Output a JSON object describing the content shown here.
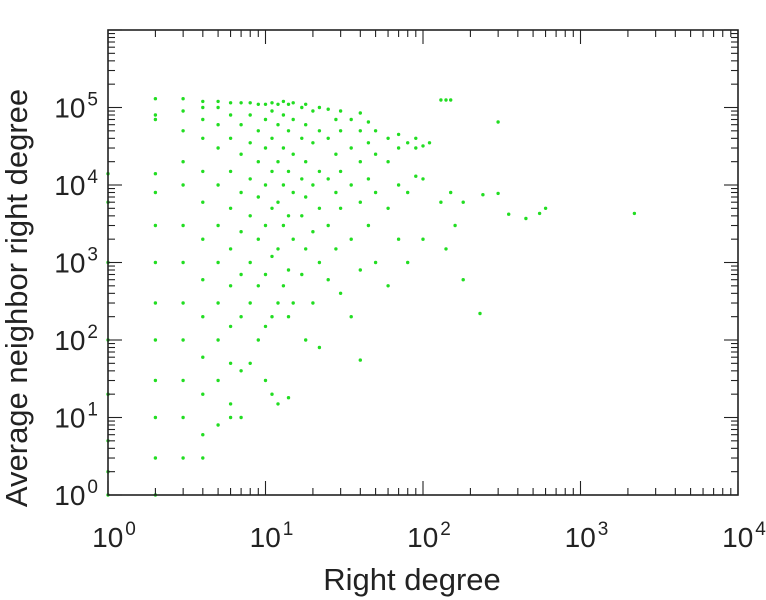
{
  "chart_data": {
    "type": "scatter",
    "title": "",
    "xlabel": "Right degree",
    "ylabel": "Average neighbor right degree",
    "x_scale": "log",
    "y_scale": "log",
    "xlim": [
      1,
      10000
    ],
    "ylim": [
      1,
      1000000
    ],
    "grid": false,
    "legend": "none",
    "x_ticks": [
      {
        "base": "10",
        "exp": "0"
      },
      {
        "base": "10",
        "exp": "1"
      },
      {
        "base": "10",
        "exp": "2"
      },
      {
        "base": "10",
        "exp": "3"
      },
      {
        "base": "10",
        "exp": "4"
      }
    ],
    "y_ticks": [
      {
        "base": "10",
        "exp": "0"
      },
      {
        "base": "10",
        "exp": "1"
      },
      {
        "base": "10",
        "exp": "2"
      },
      {
        "base": "10",
        "exp": "3"
      },
      {
        "base": "10",
        "exp": "4"
      },
      {
        "base": "10",
        "exp": "5"
      }
    ],
    "marker_color": "#22dd22",
    "series": [
      {
        "points": [
          [
            1,
            1
          ],
          [
            1,
            2
          ],
          [
            1,
            5
          ],
          [
            1,
            20
          ],
          [
            1,
            100
          ],
          [
            1,
            1000
          ],
          [
            1,
            6000
          ],
          [
            1,
            14000
          ],
          [
            2,
            1
          ],
          [
            2,
            3
          ],
          [
            2,
            10
          ],
          [
            2,
            30
          ],
          [
            2,
            100
          ],
          [
            2,
            300
          ],
          [
            2,
            1000
          ],
          [
            2,
            3000
          ],
          [
            2,
            8000
          ],
          [
            2,
            14000
          ],
          [
            2,
            70000
          ],
          [
            2,
            80000
          ],
          [
            2,
            130000
          ],
          [
            3,
            3
          ],
          [
            3,
            10
          ],
          [
            3,
            30
          ],
          [
            3,
            100
          ],
          [
            3,
            300
          ],
          [
            3,
            1000
          ],
          [
            3,
            3000
          ],
          [
            3,
            10000
          ],
          [
            3,
            20000
          ],
          [
            3,
            50000
          ],
          [
            3,
            90000
          ],
          [
            3,
            130000
          ],
          [
            4,
            3
          ],
          [
            4,
            6
          ],
          [
            4,
            20
          ],
          [
            4,
            60
          ],
          [
            4,
            200
          ],
          [
            4,
            600
          ],
          [
            4,
            2000
          ],
          [
            4,
            6000
          ],
          [
            4,
            15000
          ],
          [
            4,
            40000
          ],
          [
            4,
            70000
          ],
          [
            4,
            100000
          ],
          [
            4,
            120000
          ],
          [
            5,
            8
          ],
          [
            5,
            30
          ],
          [
            5,
            100
          ],
          [
            5,
            300
          ],
          [
            5,
            1000
          ],
          [
            5,
            3000
          ],
          [
            5,
            10000
          ],
          [
            5,
            30000
          ],
          [
            5,
            60000
          ],
          [
            5,
            100000
          ],
          [
            5,
            120000
          ],
          [
            6,
            10
          ],
          [
            6,
            15
          ],
          [
            6,
            50
          ],
          [
            6,
            150
          ],
          [
            6,
            500
          ],
          [
            6,
            1500
          ],
          [
            6,
            5000
          ],
          [
            6,
            15000
          ],
          [
            6,
            40000
          ],
          [
            6,
            80000
          ],
          [
            6,
            115000
          ],
          [
            7,
            10
          ],
          [
            7,
            40
          ],
          [
            7,
            200
          ],
          [
            7,
            700
          ],
          [
            7,
            2500
          ],
          [
            7,
            8000
          ],
          [
            7,
            25000
          ],
          [
            7,
            60000
          ],
          [
            7,
            115000
          ],
          [
            8,
            50
          ],
          [
            8,
            300
          ],
          [
            8,
            1000
          ],
          [
            8,
            4000
          ],
          [
            8,
            12000
          ],
          [
            8,
            35000
          ],
          [
            8,
            80000
          ],
          [
            8,
            115000
          ],
          [
            9,
            100
          ],
          [
            9,
            500
          ],
          [
            9,
            2000
          ],
          [
            9,
            7000
          ],
          [
            9,
            20000
          ],
          [
            9,
            50000
          ],
          [
            9,
            110000
          ],
          [
            10,
            30
          ],
          [
            10,
            150
          ],
          [
            10,
            700
          ],
          [
            10,
            3000
          ],
          [
            10,
            10000
          ],
          [
            10,
            30000
          ],
          [
            10,
            70000
          ],
          [
            10,
            110000
          ],
          [
            11,
            20
          ],
          [
            11,
            200
          ],
          [
            11,
            1200
          ],
          [
            11,
            5000
          ],
          [
            11,
            15000
          ],
          [
            11,
            40000
          ],
          [
            11,
            90000
          ],
          [
            11,
            115000
          ],
          [
            12,
            15
          ],
          [
            12,
            300
          ],
          [
            12,
            1500
          ],
          [
            12,
            6000
          ],
          [
            12,
            20000
          ],
          [
            12,
            60000
          ],
          [
            12,
            110000
          ],
          [
            13,
            500
          ],
          [
            13,
            3000
          ],
          [
            13,
            10000
          ],
          [
            13,
            30000
          ],
          [
            13,
            80000
          ],
          [
            13,
            120000
          ],
          [
            14,
            18
          ],
          [
            14,
            200
          ],
          [
            14,
            800
          ],
          [
            14,
            4000
          ],
          [
            14,
            15000
          ],
          [
            14,
            50000
          ],
          [
            14,
            110000
          ],
          [
            15,
            300
          ],
          [
            15,
            2000
          ],
          [
            15,
            8000
          ],
          [
            15,
            25000
          ],
          [
            15,
            70000
          ],
          [
            15,
            115000
          ],
          [
            17,
            700
          ],
          [
            17,
            4000
          ],
          [
            17,
            12000
          ],
          [
            17,
            40000
          ],
          [
            17,
            100000
          ],
          [
            18,
            100
          ],
          [
            18,
            1500
          ],
          [
            18,
            7000
          ],
          [
            18,
            20000
          ],
          [
            18,
            60000
          ],
          [
            18,
            110000
          ],
          [
            20,
            300
          ],
          [
            20,
            2500
          ],
          [
            20,
            10000
          ],
          [
            20,
            35000
          ],
          [
            20,
            90000
          ],
          [
            22,
            80
          ],
          [
            22,
            1000
          ],
          [
            22,
            5000
          ],
          [
            22,
            15000
          ],
          [
            22,
            50000
          ],
          [
            22,
            100000
          ],
          [
            25,
            600
          ],
          [
            25,
            3000
          ],
          [
            25,
            12000
          ],
          [
            25,
            40000
          ],
          [
            25,
            95000
          ],
          [
            28,
            1500
          ],
          [
            28,
            8000
          ],
          [
            28,
            25000
          ],
          [
            28,
            70000
          ],
          [
            30,
            400
          ],
          [
            30,
            5000
          ],
          [
            30,
            15000
          ],
          [
            30,
            50000
          ],
          [
            30,
            90000
          ],
          [
            35,
            200
          ],
          [
            35,
            2000
          ],
          [
            35,
            10000
          ],
          [
            35,
            30000
          ],
          [
            35,
            70000
          ],
          [
            40,
            55
          ],
          [
            40,
            800
          ],
          [
            40,
            6000
          ],
          [
            40,
            20000
          ],
          [
            40,
            50000
          ],
          [
            40,
            85000
          ],
          [
            45,
            3000
          ],
          [
            45,
            12000
          ],
          [
            45,
            35000
          ],
          [
            45,
            65000
          ],
          [
            50,
            1000
          ],
          [
            50,
            8000
          ],
          [
            50,
            25000
          ],
          [
            50,
            50000
          ],
          [
            60,
            500
          ],
          [
            60,
            5000
          ],
          [
            60,
            20000
          ],
          [
            60,
            40000
          ],
          [
            70,
            2000
          ],
          [
            70,
            10000
          ],
          [
            70,
            30000
          ],
          [
            70,
            45000
          ],
          [
            80,
            1000
          ],
          [
            80,
            8000
          ],
          [
            80,
            35000
          ],
          [
            90,
            13000
          ],
          [
            90,
            30000
          ],
          [
            90,
            40000
          ],
          [
            100,
            2000
          ],
          [
            100,
            12000
          ],
          [
            100,
            32000
          ],
          [
            110,
            35000
          ],
          [
            130,
            6000
          ],
          [
            130,
            125000
          ],
          [
            140,
            1500
          ],
          [
            140,
            125000
          ],
          [
            150,
            8000
          ],
          [
            150,
            125000
          ],
          [
            160,
            3000
          ],
          [
            180,
            600
          ],
          [
            180,
            6000
          ],
          [
            230,
            220
          ],
          [
            240,
            7500
          ],
          [
            300,
            65000
          ],
          [
            300,
            7800
          ],
          [
            350,
            4200
          ],
          [
            450,
            3700
          ],
          [
            550,
            4300
          ],
          [
            600,
            5000
          ],
          [
            2200,
            4300
          ]
        ]
      }
    ]
  }
}
